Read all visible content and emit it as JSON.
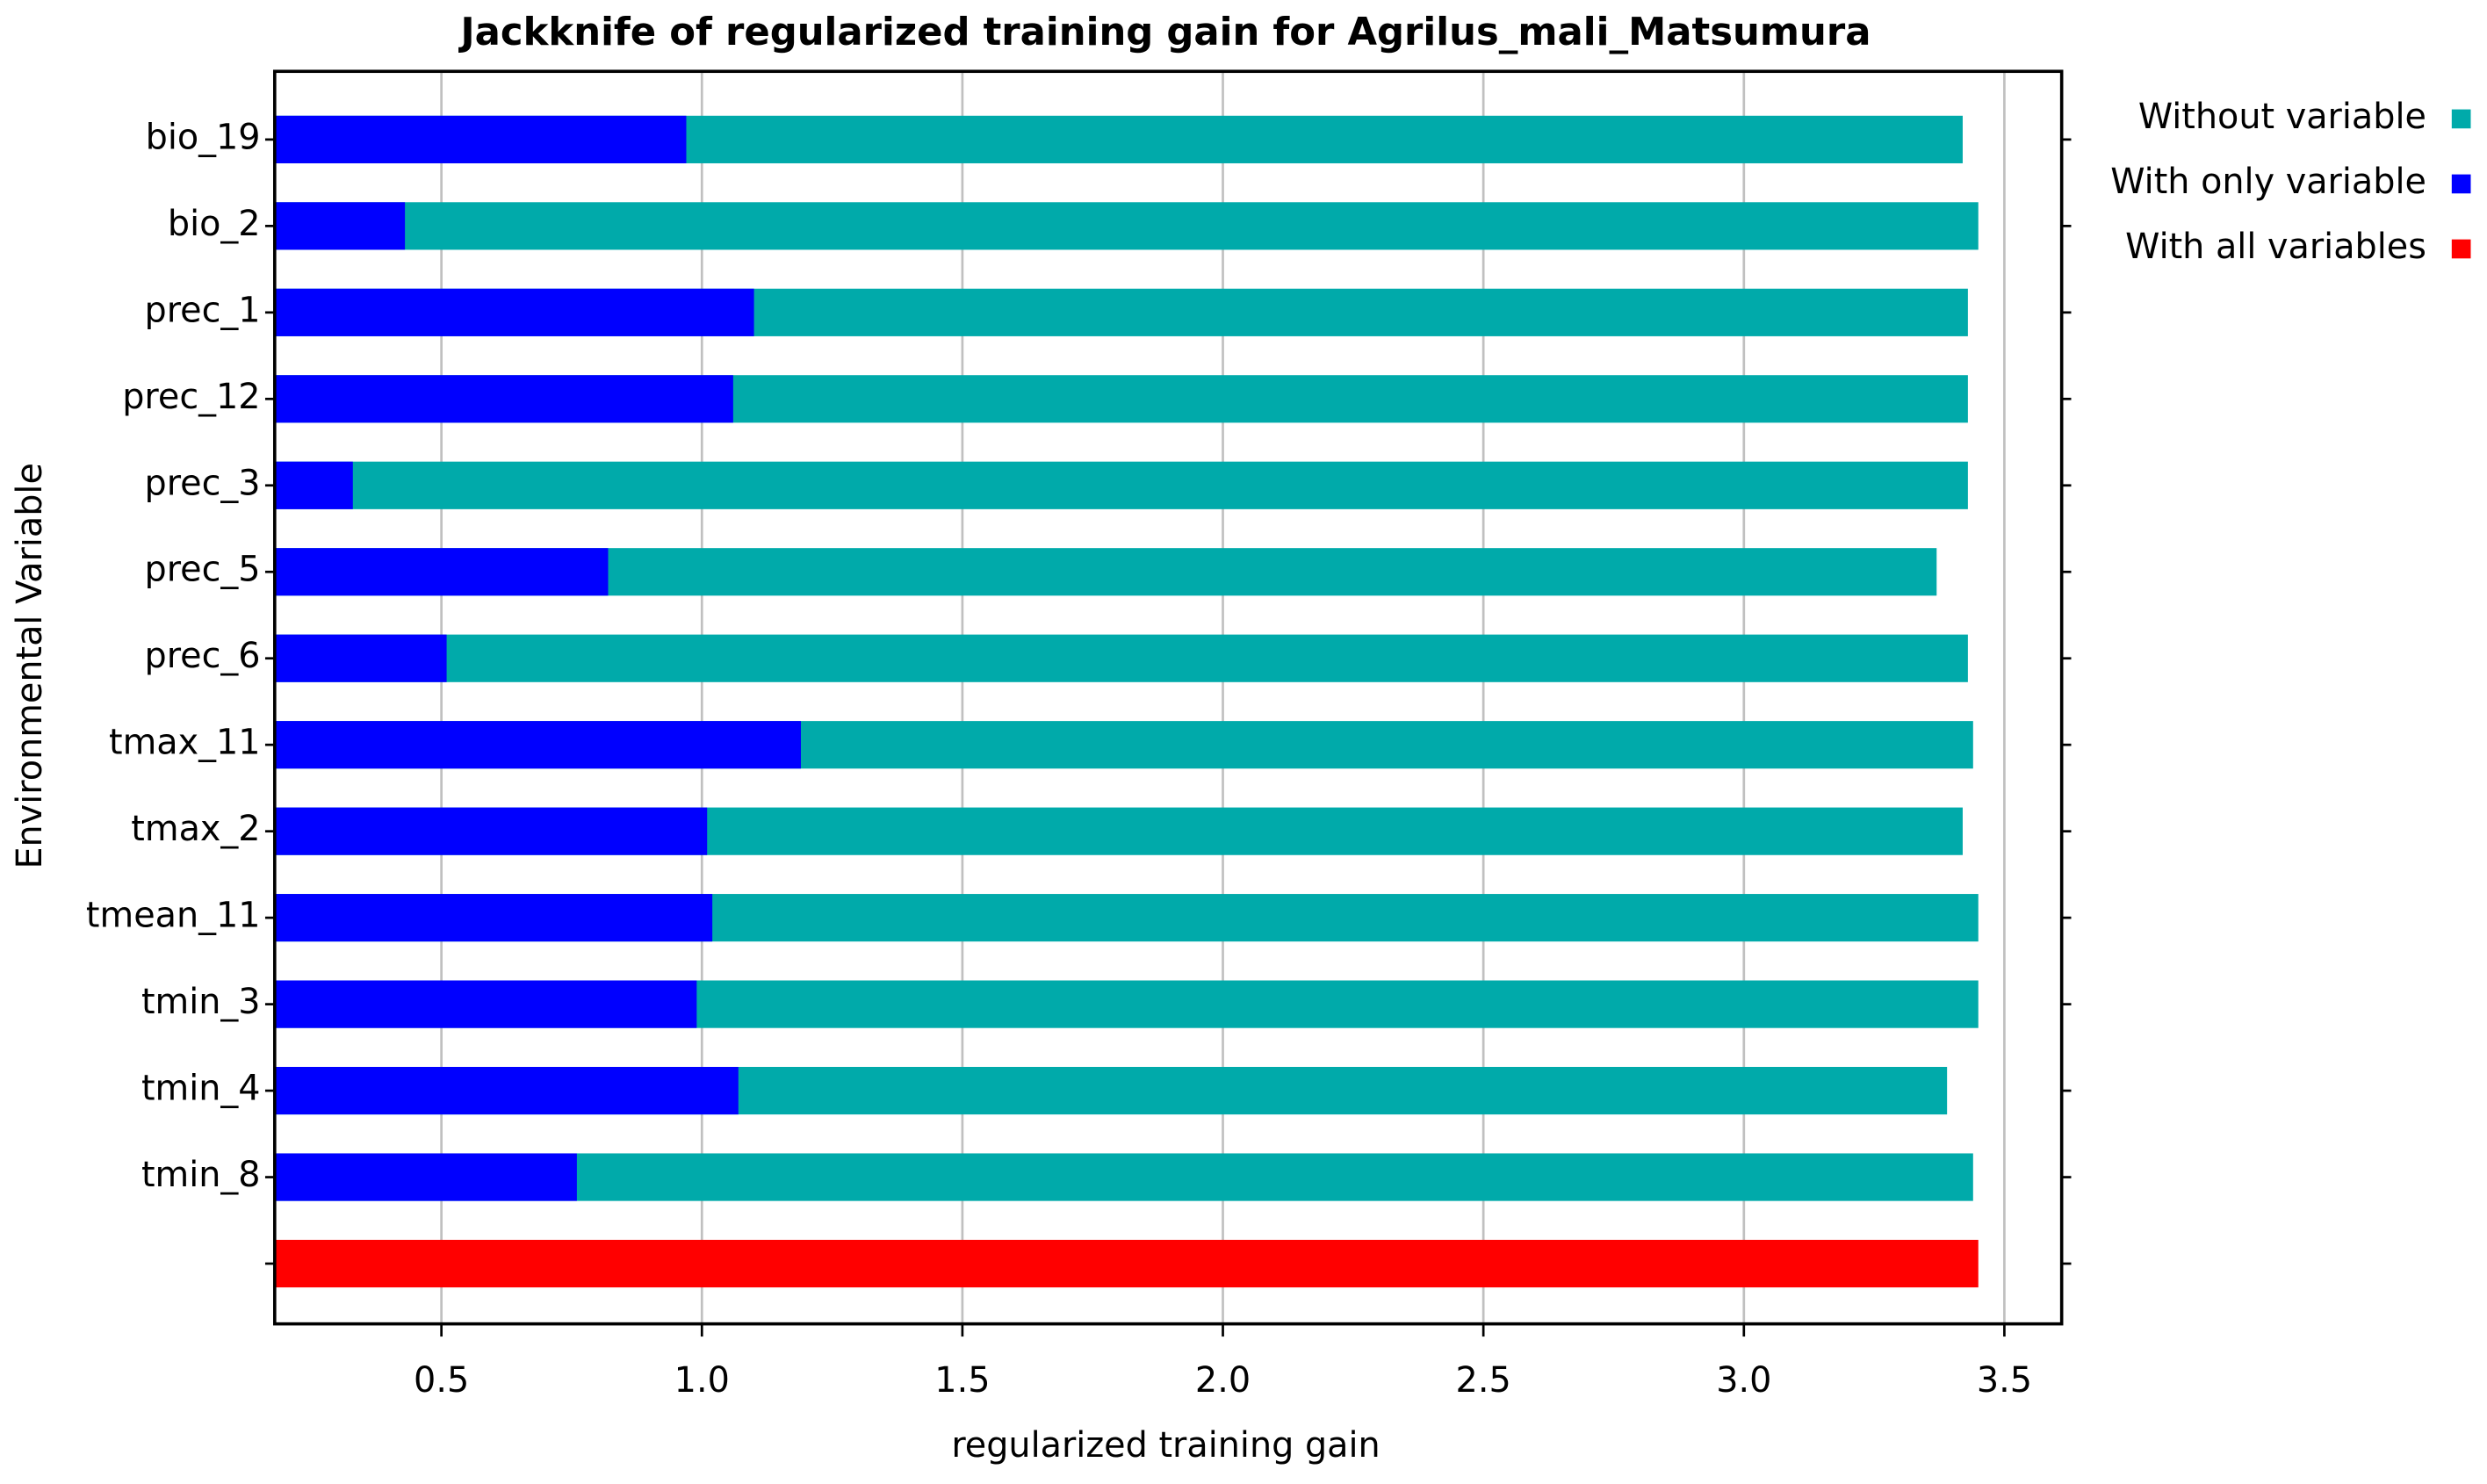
{
  "chart_data": {
    "type": "bar",
    "orientation": "horizontal",
    "title": "Jackknife of regularized training gain for Agrilus_mali_Matsumura",
    "x_label": "regularized training gain",
    "y_label": "Environmental Variable",
    "categories": [
      "bio_19",
      "bio_2",
      "prec_1",
      "prec_12",
      "prec_3",
      "prec_5",
      "prec_6",
      "tmax_11",
      "tmax_2",
      "tmean_11",
      "tmin_3",
      "tmin_4",
      "tmin_8",
      null
    ],
    "series": [
      {
        "name": "Without variable",
        "color": "#00aaaa",
        "values": [
          3.42,
          3.45,
          3.43,
          3.43,
          3.43,
          3.37,
          3.43,
          3.44,
          3.42,
          3.45,
          3.45,
          3.39,
          3.44,
          null
        ]
      },
      {
        "name": "With only variable",
        "color": "#0000ff",
        "values": [
          0.97,
          0.43,
          1.1,
          1.06,
          0.33,
          0.82,
          0.51,
          1.19,
          1.01,
          1.02,
          0.99,
          1.07,
          0.76,
          null
        ]
      },
      {
        "name": "With all variables",
        "color": "#ff0000",
        "values": [
          null,
          null,
          null,
          null,
          null,
          null,
          null,
          null,
          null,
          null,
          null,
          null,
          null,
          3.45
        ]
      }
    ],
    "xlim": [
      0.18,
      3.61
    ],
    "xticks": [
      {
        "value": 0.5,
        "label": "0.5"
      },
      {
        "value": 1.0,
        "label": "1.0"
      },
      {
        "value": 1.5,
        "label": "1.5"
      },
      {
        "value": 2.0,
        "label": "2.0"
      },
      {
        "value": 2.5,
        "label": "2.5"
      },
      {
        "value": 3.0,
        "label": "3.0"
      },
      {
        "value": 3.5,
        "label": "3.5"
      }
    ],
    "grid": true,
    "legend": "outside-right"
  }
}
